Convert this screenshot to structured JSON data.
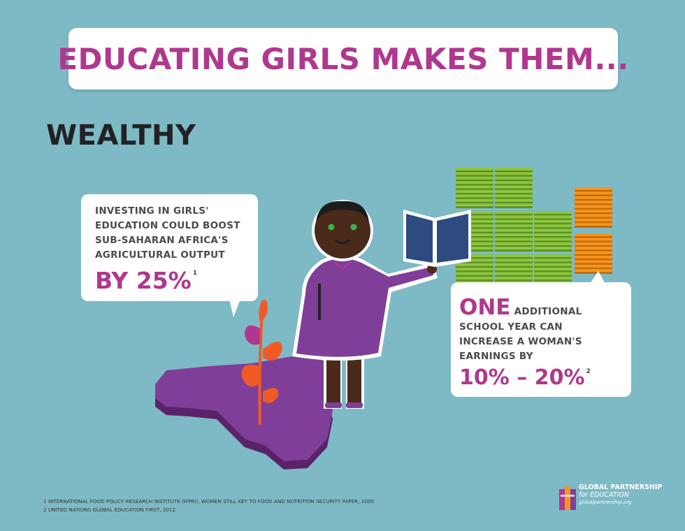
{
  "headline": "EDUCATING GIRLS MAKES THEM...",
  "section": "WEALTHY",
  "left_callout": {
    "lines": [
      "INVESTING IN GIRLS'",
      "EDUCATION COULD BOOST",
      "SUB-SAHARAN AFRICA'S",
      "AGRICULTURAL OUTPUT"
    ],
    "value": "BY 25%",
    "footnote_ref": "1"
  },
  "right_callout": {
    "big_word": "ONE",
    "first_line_rest": "ADDITIONAL",
    "lines": [
      "SCHOOL YEAR CAN",
      "INCREASE A WOMAN'S",
      "EARNINGS BY"
    ],
    "value": "10% – 20%",
    "footnote_ref": "2"
  },
  "footnotes": [
    "1  INTERNATIONAL FOOD POLICY RESEARCH INSTITUTE (IFPRI), WOMEN STILL KEY TO FOOD AND NUTRITION SECURITY PAPER, 2005",
    "2  UNITED NATIONS GLOBAL EDUCATION FIRST, 2012"
  ],
  "logo": {
    "line1": "GLOBAL PARTNERSHIP",
    "line2": "for EDUCATION",
    "line3": "globalpartnership.org"
  },
  "icons": [
    "money-stacks-icon",
    "book-icon",
    "girl-illustration",
    "africa-map-icon",
    "plant-sprout-icon",
    "gpe-logo-icon"
  ],
  "colors": {
    "background": "#7dbac6",
    "accent_magenta": "#b0378e",
    "dress_purple": "#7f3f98",
    "africa_purple": "#6e2e7e",
    "money_green": "#8cc63f",
    "money_orange": "#f7941d",
    "book_blue": "#2d4b7f",
    "plant_orange": "#f15a24"
  }
}
